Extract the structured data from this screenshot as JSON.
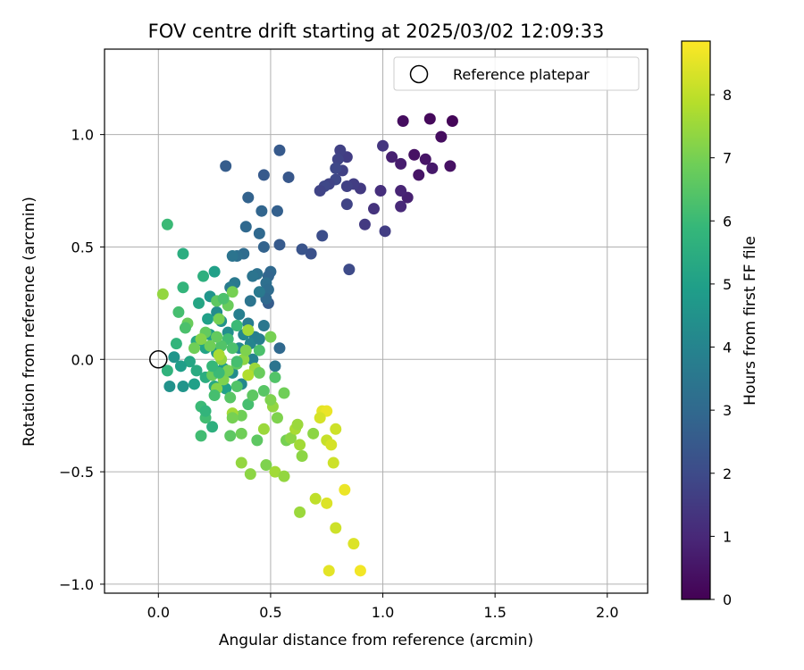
{
  "chart_data": {
    "type": "scatter",
    "title": "FOV centre drift starting at 2025/03/02 12:09:33",
    "xlabel": "Angular distance from reference (arcmin)",
    "ylabel": "Rotation from reference (arcmin)",
    "xlim": [
      -0.24,
      2.18
    ],
    "ylim": [
      -1.04,
      1.38
    ],
    "x_ticks": [
      0.0,
      0.5,
      1.0,
      1.5,
      2.0
    ],
    "x_tick_labels": [
      "0.0",
      "0.5",
      "1.0",
      "1.5",
      "2.0"
    ],
    "y_ticks": [
      -1.0,
      -0.5,
      0.0,
      0.5,
      1.0
    ],
    "y_tick_labels": [
      "−1.0",
      "−0.5",
      "0.0",
      "0.5",
      "1.0"
    ],
    "grid": true,
    "legend": {
      "position": "top-right",
      "entries": [
        "Reference platepar"
      ]
    },
    "reference_point": {
      "x": 0.0,
      "y": 0.0
    },
    "colorbar": {
      "label": "Hours from first FF file",
      "colormap": "viridis",
      "range": [
        0,
        8.85
      ],
      "ticks": [
        0,
        1,
        2,
        3,
        4,
        5,
        6,
        7,
        8
      ],
      "tick_labels": [
        "0",
        "1",
        "2",
        "3",
        "4",
        "5",
        "6",
        "7",
        "8"
      ]
    },
    "points": [
      {
        "x": 1.31,
        "y": 1.06,
        "t": 0.1
      },
      {
        "x": 1.21,
        "y": 1.07,
        "t": 0.2
      },
      {
        "x": 1.09,
        "y": 1.06,
        "t": 0.3
      },
      {
        "x": 1.26,
        "y": 0.99,
        "t": 0.3
      },
      {
        "x": 1.14,
        "y": 0.91,
        "t": 0.4
      },
      {
        "x": 1.19,
        "y": 0.89,
        "t": 0.5
      },
      {
        "x": 1.3,
        "y": 0.86,
        "t": 0.4
      },
      {
        "x": 1.22,
        "y": 0.85,
        "t": 0.6
      },
      {
        "x": 1.16,
        "y": 0.82,
        "t": 0.5
      },
      {
        "x": 1.08,
        "y": 0.87,
        "t": 0.7
      },
      {
        "x": 1.04,
        "y": 0.9,
        "t": 0.8
      },
      {
        "x": 1.11,
        "y": 0.72,
        "t": 0.8
      },
      {
        "x": 1.08,
        "y": 0.75,
        "t": 0.9
      },
      {
        "x": 1.08,
        "y": 0.68,
        "t": 1.0
      },
      {
        "x": 0.99,
        "y": 0.75,
        "t": 1.2
      },
      {
        "x": 0.96,
        "y": 0.67,
        "t": 1.3
      },
      {
        "x": 1.0,
        "y": 0.95,
        "t": 1.4
      },
      {
        "x": 1.01,
        "y": 0.57,
        "t": 1.6
      },
      {
        "x": 0.92,
        "y": 0.6,
        "t": 1.5
      },
      {
        "x": 0.9,
        "y": 0.76,
        "t": 1.5
      },
      {
        "x": 0.87,
        "y": 0.78,
        "t": 1.6
      },
      {
        "x": 0.84,
        "y": 0.77,
        "t": 1.7
      },
      {
        "x": 0.84,
        "y": 0.69,
        "t": 1.8
      },
      {
        "x": 0.84,
        "y": 0.9,
        "t": 1.6
      },
      {
        "x": 0.81,
        "y": 0.93,
        "t": 1.7
      },
      {
        "x": 0.8,
        "y": 0.89,
        "t": 1.8
      },
      {
        "x": 0.82,
        "y": 0.84,
        "t": 1.7
      },
      {
        "x": 0.79,
        "y": 0.85,
        "t": 1.9
      },
      {
        "x": 0.79,
        "y": 0.8,
        "t": 1.9
      },
      {
        "x": 0.76,
        "y": 0.78,
        "t": 1.8
      },
      {
        "x": 0.74,
        "y": 0.77,
        "t": 1.9
      },
      {
        "x": 0.72,
        "y": 0.75,
        "t": 1.8
      },
      {
        "x": 0.85,
        "y": 0.4,
        "t": 2.0
      },
      {
        "x": 0.73,
        "y": 0.55,
        "t": 2.1
      },
      {
        "x": 0.68,
        "y": 0.47,
        "t": 2.2
      },
      {
        "x": 0.64,
        "y": 0.49,
        "t": 2.3
      },
      {
        "x": 0.54,
        "y": 0.93,
        "t": 2.5
      },
      {
        "x": 0.58,
        "y": 0.81,
        "t": 2.4
      },
      {
        "x": 0.47,
        "y": 0.82,
        "t": 2.5
      },
      {
        "x": 0.3,
        "y": 0.86,
        "t": 2.6
      },
      {
        "x": 0.4,
        "y": 0.72,
        "t": 2.8
      },
      {
        "x": 0.53,
        "y": 0.66,
        "t": 2.7
      },
      {
        "x": 0.46,
        "y": 0.66,
        "t": 2.9
      },
      {
        "x": 0.39,
        "y": 0.59,
        "t": 3.0
      },
      {
        "x": 0.45,
        "y": 0.56,
        "t": 3.0
      },
      {
        "x": 0.54,
        "y": 0.51,
        "t": 2.5
      },
      {
        "x": 0.47,
        "y": 0.5,
        "t": 2.8
      },
      {
        "x": 0.38,
        "y": 0.47,
        "t": 3.1
      },
      {
        "x": 0.35,
        "y": 0.46,
        "t": 3.2
      },
      {
        "x": 0.33,
        "y": 0.46,
        "t": 3.4
      },
      {
        "x": 0.5,
        "y": 0.39,
        "t": 3.0
      },
      {
        "x": 0.49,
        "y": 0.37,
        "t": 2.9
      },
      {
        "x": 0.44,
        "y": 0.38,
        "t": 3.3
      },
      {
        "x": 0.42,
        "y": 0.37,
        "t": 3.4
      },
      {
        "x": 0.48,
        "y": 0.34,
        "t": 3.2
      },
      {
        "x": 0.49,
        "y": 0.31,
        "t": 3.1
      },
      {
        "x": 0.49,
        "y": 0.25,
        "t": 2.6
      },
      {
        "x": 0.48,
        "y": 0.27,
        "t": 3.0
      },
      {
        "x": 0.45,
        "y": 0.3,
        "t": 3.6
      },
      {
        "x": 0.41,
        "y": 0.26,
        "t": 3.4
      },
      {
        "x": 0.34,
        "y": 0.34,
        "t": 3.6
      },
      {
        "x": 0.32,
        "y": 0.32,
        "t": 3.7
      },
      {
        "x": 0.36,
        "y": 0.2,
        "t": 3.8
      },
      {
        "x": 0.4,
        "y": 0.16,
        "t": 3.7
      },
      {
        "x": 0.47,
        "y": 0.15,
        "t": 3.5
      },
      {
        "x": 0.54,
        "y": 0.05,
        "t": 3.0
      },
      {
        "x": 0.52,
        "y": -0.03,
        "t": 3.4
      },
      {
        "x": 0.43,
        "y": 0.1,
        "t": 3.8
      },
      {
        "x": 0.41,
        "y": 0.07,
        "t": 4.0
      },
      {
        "x": 0.45,
        "y": 0.09,
        "t": 3.8
      },
      {
        "x": 0.38,
        "y": 0.11,
        "t": 4.1
      },
      {
        "x": 0.42,
        "y": 0.0,
        "t": 3.9
      },
      {
        "x": 0.36,
        "y": 0.05,
        "t": 4.2
      },
      {
        "x": 0.31,
        "y": 0.12,
        "t": 4.4
      },
      {
        "x": 0.28,
        "y": 0.17,
        "t": 4.5
      },
      {
        "x": 0.26,
        "y": 0.21,
        "t": 4.3
      },
      {
        "x": 0.23,
        "y": 0.28,
        "t": 4.6
      },
      {
        "x": 0.25,
        "y": 0.39,
        "t": 5.0
      },
      {
        "x": 0.2,
        "y": 0.37,
        "t": 5.6
      },
      {
        "x": 0.18,
        "y": 0.25,
        "t": 5.2
      },
      {
        "x": 0.22,
        "y": 0.18,
        "t": 5.0
      },
      {
        "x": 0.23,
        "y": 0.11,
        "t": 4.8
      },
      {
        "x": 0.17,
        "y": 0.08,
        "t": 5.3
      },
      {
        "x": 0.21,
        "y": 0.05,
        "t": 5.1
      },
      {
        "x": 0.26,
        "y": 0.03,
        "t": 4.7
      },
      {
        "x": 0.29,
        "y": -0.04,
        "t": 4.8
      },
      {
        "x": 0.33,
        "y": -0.06,
        "t": 4.3
      },
      {
        "x": 0.37,
        "y": -0.11,
        "t": 4.1
      },
      {
        "x": 0.3,
        "y": -0.13,
        "t": 5.0
      },
      {
        "x": 0.25,
        "y": -0.12,
        "t": 5.3
      },
      {
        "x": 0.21,
        "y": -0.08,
        "t": 5.5
      },
      {
        "x": 0.17,
        "y": -0.05,
        "t": 5.4
      },
      {
        "x": 0.14,
        "y": -0.01,
        "t": 5.2
      },
      {
        "x": 0.1,
        "y": -0.03,
        "t": 4.9
      },
      {
        "x": 0.07,
        "y": 0.01,
        "t": 4.6
      },
      {
        "x": 0.08,
        "y": 0.07,
        "t": 5.8
      },
      {
        "x": 0.04,
        "y": -0.05,
        "t": 5.7
      },
      {
        "x": 0.05,
        "y": -0.12,
        "t": 4.5
      },
      {
        "x": 0.11,
        "y": -0.12,
        "t": 4.6
      },
      {
        "x": 0.16,
        "y": -0.11,
        "t": 5.0
      },
      {
        "x": 0.19,
        "y": -0.21,
        "t": 6.0
      },
      {
        "x": 0.24,
        "y": -0.3,
        "t": 5.6
      },
      {
        "x": 0.19,
        "y": -0.34,
        "t": 6.1
      },
      {
        "x": 0.32,
        "y": -0.34,
        "t": 6.6
      },
      {
        "x": 0.37,
        "y": -0.33,
        "t": 6.9
      },
      {
        "x": 0.44,
        "y": -0.36,
        "t": 6.6
      },
      {
        "x": 0.41,
        "y": -0.51,
        "t": 7.3
      },
      {
        "x": 0.37,
        "y": -0.46,
        "t": 7.4
      },
      {
        "x": 0.48,
        "y": -0.47,
        "t": 7.1
      },
      {
        "x": 0.52,
        "y": -0.5,
        "t": 7.6
      },
      {
        "x": 0.56,
        "y": -0.52,
        "t": 7.4
      },
      {
        "x": 0.63,
        "y": -0.68,
        "t": 7.5
      },
      {
        "x": 0.57,
        "y": -0.36,
        "t": 7.0
      },
      {
        "x": 0.59,
        "y": -0.35,
        "t": 7.3
      },
      {
        "x": 0.63,
        "y": -0.38,
        "t": 7.6
      },
      {
        "x": 0.64,
        "y": -0.43,
        "t": 7.3
      },
      {
        "x": 0.69,
        "y": -0.33,
        "t": 7.3
      },
      {
        "x": 0.61,
        "y": -0.31,
        "t": 7.7
      },
      {
        "x": 0.62,
        "y": -0.29,
        "t": 7.5
      },
      {
        "x": 0.53,
        "y": -0.26,
        "t": 7.1
      },
      {
        "x": 0.51,
        "y": -0.21,
        "t": 7.4
      },
      {
        "x": 0.56,
        "y": -0.15,
        "t": 6.9
      },
      {
        "x": 0.47,
        "y": -0.31,
        "t": 7.5
      },
      {
        "x": 0.4,
        "y": -0.2,
        "t": 6.2
      },
      {
        "x": 0.42,
        "y": -0.16,
        "t": 6.6
      },
      {
        "x": 0.37,
        "y": -0.25,
        "t": 6.9
      },
      {
        "x": 0.33,
        "y": -0.24,
        "t": 7.6
      },
      {
        "x": 0.33,
        "y": -0.26,
        "t": 7.0
      },
      {
        "x": 0.35,
        "y": -0.12,
        "t": 6.4
      },
      {
        "x": 0.32,
        "y": -0.17,
        "t": 6.5
      },
      {
        "x": 0.29,
        "y": -0.09,
        "t": 7.1
      },
      {
        "x": 0.26,
        "y": -0.13,
        "t": 7.2
      },
      {
        "x": 0.25,
        "y": -0.16,
        "t": 6.2
      },
      {
        "x": 0.24,
        "y": -0.07,
        "t": 6.8
      },
      {
        "x": 0.28,
        "y": 0.0,
        "t": 7.4
      },
      {
        "x": 0.31,
        "y": -0.05,
        "t": 7.0
      },
      {
        "x": 0.35,
        "y": -0.02,
        "t": 6.6
      },
      {
        "x": 0.38,
        "y": 0.0,
        "t": 7.3
      },
      {
        "x": 0.39,
        "y": 0.04,
        "t": 7.1
      },
      {
        "x": 0.43,
        "y": -0.04,
        "t": 7.5
      },
      {
        "x": 0.4,
        "y": -0.07,
        "t": 7.8
      },
      {
        "x": 0.45,
        "y": 0.04,
        "t": 6.3
      },
      {
        "x": 0.5,
        "y": 0.1,
        "t": 7.0
      },
      {
        "x": 0.4,
        "y": 0.13,
        "t": 7.6
      },
      {
        "x": 0.35,
        "y": 0.15,
        "t": 6.0
      },
      {
        "x": 0.31,
        "y": 0.09,
        "t": 6.1
      },
      {
        "x": 0.28,
        "y": 0.06,
        "t": 6.4
      },
      {
        "x": 0.26,
        "y": 0.1,
        "t": 6.7
      },
      {
        "x": 0.23,
        "y": 0.06,
        "t": 6.9
      },
      {
        "x": 0.21,
        "y": 0.12,
        "t": 6.7
      },
      {
        "x": 0.19,
        "y": 0.09,
        "t": 7.2
      },
      {
        "x": 0.16,
        "y": 0.05,
        "t": 6.9
      },
      {
        "x": 0.13,
        "y": 0.16,
        "t": 6.8
      },
      {
        "x": 0.12,
        "y": 0.14,
        "t": 6.3
      },
      {
        "x": 0.09,
        "y": 0.21,
        "t": 6.2
      },
      {
        "x": 0.02,
        "y": 0.29,
        "t": 7.4
      },
      {
        "x": 0.11,
        "y": 0.32,
        "t": 5.8
      },
      {
        "x": 0.11,
        "y": 0.47,
        "t": 5.5
      },
      {
        "x": 0.04,
        "y": 0.6,
        "t": 6.0
      },
      {
        "x": 0.27,
        "y": 0.18,
        "t": 7.0
      },
      {
        "x": 0.26,
        "y": 0.26,
        "t": 6.6
      },
      {
        "x": 0.31,
        "y": 0.24,
        "t": 6.8
      },
      {
        "x": 0.33,
        "y": 0.3,
        "t": 7.0
      },
      {
        "x": 0.29,
        "y": 0.27,
        "t": 6.3
      },
      {
        "x": 0.33,
        "y": 0.05,
        "t": 6.3
      },
      {
        "x": 0.35,
        "y": -0.01,
        "t": 6.2
      },
      {
        "x": 0.27,
        "y": 0.02,
        "t": 7.7
      },
      {
        "x": 0.27,
        "y": -0.06,
        "t": 6.0
      },
      {
        "x": 0.21,
        "y": -0.26,
        "t": 6.1
      },
      {
        "x": 0.21,
        "y": -0.23,
        "t": 5.8
      },
      {
        "x": 0.24,
        "y": -0.03,
        "t": 5.9
      },
      {
        "x": 0.45,
        "y": -0.06,
        "t": 6.8
      },
      {
        "x": 0.47,
        "y": -0.14,
        "t": 6.5
      },
      {
        "x": 0.52,
        "y": -0.08,
        "t": 6.4
      },
      {
        "x": 0.5,
        "y": -0.18,
        "t": 7.1
      },
      {
        "x": 0.73,
        "y": -0.23,
        "t": 8.5
      },
      {
        "x": 0.75,
        "y": -0.23,
        "t": 8.6
      },
      {
        "x": 0.72,
        "y": -0.26,
        "t": 8.3
      },
      {
        "x": 0.79,
        "y": -0.31,
        "t": 8.2
      },
      {
        "x": 0.75,
        "y": -0.36,
        "t": 8.1
      },
      {
        "x": 0.77,
        "y": -0.38,
        "t": 8.3
      },
      {
        "x": 0.78,
        "y": -0.46,
        "t": 8.2
      },
      {
        "x": 0.7,
        "y": -0.62,
        "t": 8.0
      },
      {
        "x": 0.75,
        "y": -0.64,
        "t": 8.4
      },
      {
        "x": 0.83,
        "y": -0.58,
        "t": 8.6
      },
      {
        "x": 0.79,
        "y": -0.75,
        "t": 8.2
      },
      {
        "x": 0.87,
        "y": -0.82,
        "t": 8.4
      },
      {
        "x": 0.76,
        "y": -0.94,
        "t": 8.5
      },
      {
        "x": 0.9,
        "y": -0.94,
        "t": 8.7
      }
    ]
  }
}
